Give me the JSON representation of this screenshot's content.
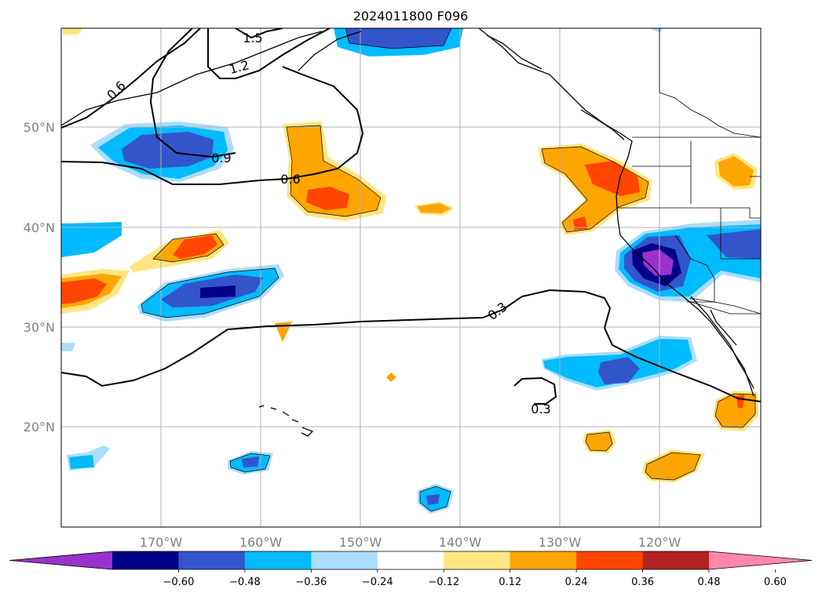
{
  "title": "2024011800 F096",
  "map": {
    "lat_labels": [
      "50°N",
      "40°N",
      "30°N",
      "20°N"
    ],
    "lat_values": [
      50,
      40,
      30,
      20
    ],
    "lon_labels": [
      "170°W",
      "160°W",
      "150°W",
      "140°W",
      "130°W",
      "120°W"
    ],
    "lon_values": [
      -170,
      -160,
      -150,
      -140,
      -130,
      -120
    ],
    "contour_labels": [
      "0.6",
      "1.2",
      "1.5",
      "0.9",
      "0.6",
      "0.3",
      "0.3"
    ],
    "grid": true
  },
  "colorbar": {
    "tick_labels": [
      "−0.60",
      "−0.48",
      "−0.36",
      "−0.24",
      "−0.12",
      "0.12",
      "0.24",
      "0.36",
      "0.48",
      "0.60"
    ],
    "colors": [
      "#9933cc",
      "#000088",
      "#3355cc",
      "#00bbff",
      "#aaddff",
      "#ffffff",
      "#ffe680",
      "#ffa500",
      "#ff4500",
      "#b22222",
      "#ff88aa"
    ],
    "extend": "both"
  },
  "colors": {
    "neg_strong": "#000088",
    "neg_mid": "#3355cc",
    "neg_light": "#00bbff",
    "neg_pale": "#aaddff",
    "pos_pale": "#ffe680",
    "pos_mid": "#ffa500",
    "pos_strong": "#ff4500",
    "extreme_neg": "#9933cc",
    "extreme_pos": "#b22222"
  }
}
